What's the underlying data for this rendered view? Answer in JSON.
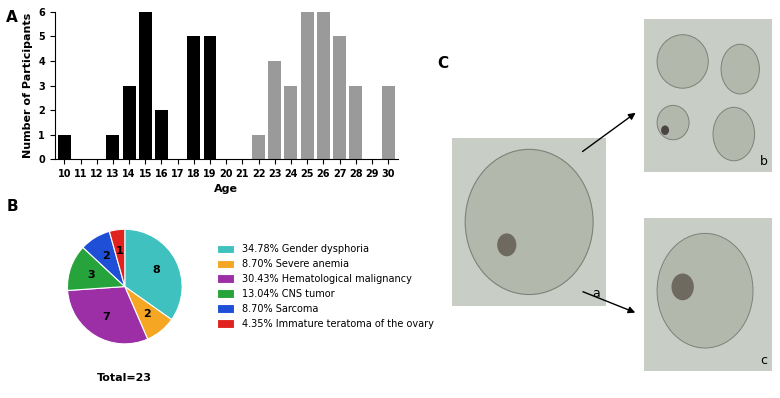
{
  "panel_labels": [
    "A",
    "B",
    "C"
  ],
  "chart_data": [
    {
      "type": "bar",
      "x": [
        10,
        11,
        12,
        13,
        14,
        15,
        16,
        17,
        18,
        19,
        20,
        21,
        22,
        23,
        24,
        25,
        26,
        27,
        28,
        29,
        30
      ],
      "values": [
        1,
        0,
        0,
        1,
        3,
        6,
        2,
        0,
        5,
        5,
        0,
        0,
        1,
        4,
        3,
        6,
        6,
        5,
        3,
        0,
        3
      ],
      "colors": [
        "#000000",
        "#000000",
        "#000000",
        "#000000",
        "#000000",
        "#000000",
        "#000000",
        "#000000",
        "#000000",
        "#000000",
        "#9a9a9a",
        "#9a9a9a",
        "#9a9a9a",
        "#9a9a9a",
        "#9a9a9a",
        "#9a9a9a",
        "#9a9a9a",
        "#9a9a9a",
        "#9a9a9a",
        "#9a9a9a",
        "#9a9a9a"
      ],
      "xlabel": "Age",
      "ylabel": "Number of Participants",
      "xlim": [
        9.4,
        30.6
      ],
      "xticks": [
        10,
        11,
        12,
        13,
        14,
        15,
        16,
        17,
        18,
        19,
        20,
        21,
        22,
        23,
        24,
        25,
        26,
        27,
        28,
        29,
        30
      ],
      "ylim": [
        0,
        6
      ],
      "yticks": [
        0,
        1,
        2,
        3,
        4,
        5,
        6
      ]
    },
    {
      "type": "pie",
      "categories": [
        "34.78% Gender dysphoria",
        "8.70% Severe anemia",
        "30.43% Hematological malignancy",
        "13.04% CNS tumor",
        "8.70% Sarcoma",
        "4.35% Immature teratoma of the ovary"
      ],
      "values": [
        8,
        2,
        7,
        3,
        2,
        1
      ],
      "colors": [
        "#3fc1c0",
        "#f5a623",
        "#9c2fa6",
        "#27a33b",
        "#1f4fd6",
        "#e0231f"
      ],
      "data_labels": true,
      "legend": "center left",
      "annotations": [
        "Total=23"
      ]
    }
  ],
  "images": {
    "labels": [
      "a",
      "b",
      "c"
    ]
  }
}
